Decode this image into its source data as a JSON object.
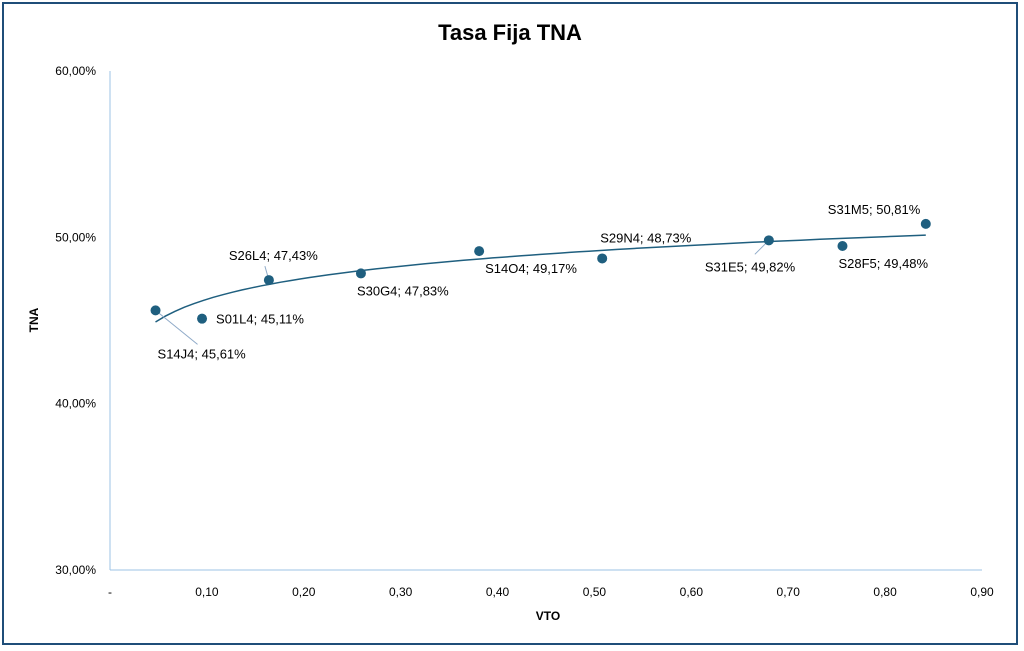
{
  "chart_data": {
    "type": "scatter",
    "title": "Tasa Fija TNA",
    "xlabel": "VTO",
    "ylabel": "TNA",
    "xlim": [
      0,
      0.9
    ],
    "ylim": [
      0.3,
      0.6
    ],
    "x_ticks": [
      "-",
      "0,10",
      "0,20",
      "0,30",
      "0,40",
      "0,50",
      "0,60",
      "0,70",
      "0,80",
      "0,90"
    ],
    "x_tick_values": [
      0,
      0.1,
      0.2,
      0.3,
      0.4,
      0.5,
      0.6,
      0.7,
      0.8,
      0.9
    ],
    "y_ticks": [
      "30,00%",
      "40,00%",
      "50,00%",
      "60,00%"
    ],
    "y_tick_values": [
      0.3,
      0.4,
      0.5,
      0.6
    ],
    "grid": false,
    "legend": false,
    "marker_color": "#1f5f7f",
    "trendline": "logarithmic",
    "trendline_color": "#1f5f7f",
    "points": [
      {
        "x": 0.047,
        "y": 0.4561,
        "label": "S14J4; 45,61%"
      },
      {
        "x": 0.095,
        "y": 0.4511,
        "label": "S01L4; 45,11%"
      },
      {
        "x": 0.164,
        "y": 0.4743,
        "label": "S26L4; 47,43%"
      },
      {
        "x": 0.259,
        "y": 0.4783,
        "label": "S30G4; 47,83%"
      },
      {
        "x": 0.381,
        "y": 0.4917,
        "label": "S14O4; 49,17%"
      },
      {
        "x": 0.508,
        "y": 0.4873,
        "label": "S29N4; 48,73%"
      },
      {
        "x": 0.68,
        "y": 0.4982,
        "label": "S31E5; 49,82%"
      },
      {
        "x": 0.756,
        "y": 0.4948,
        "label": "S28F5; 49,48%"
      },
      {
        "x": 0.842,
        "y": 0.5081,
        "label": "S31M5; 50,81%"
      }
    ]
  }
}
